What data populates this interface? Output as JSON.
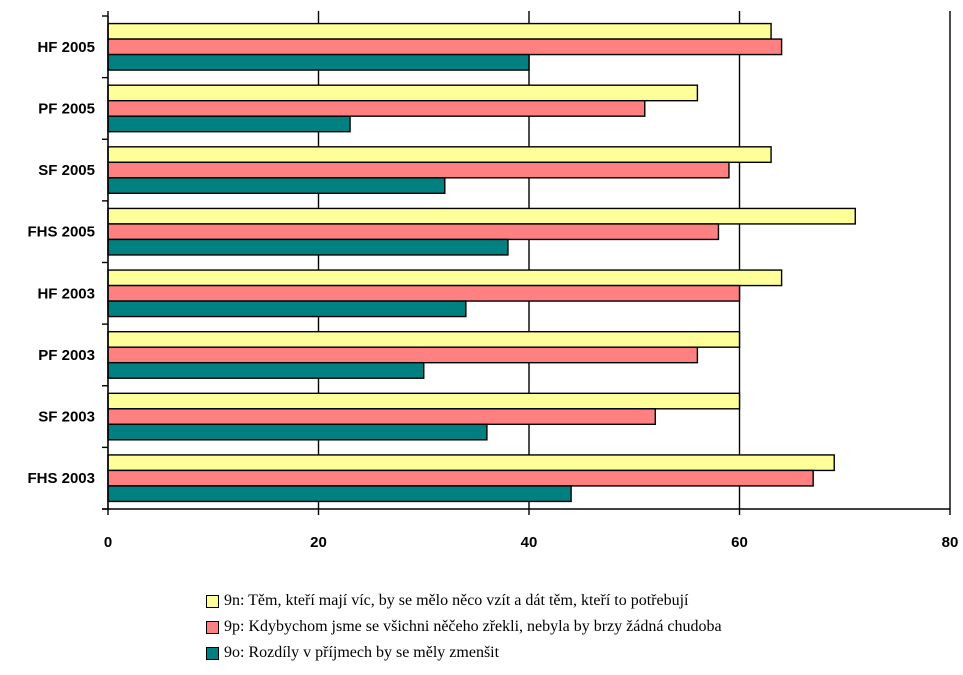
{
  "chart_data": {
    "type": "bar",
    "orientation": "horizontal",
    "categories": [
      "HF 2005",
      "PF 2005",
      "SF 2005",
      "FHS 2005",
      "HF 2003",
      "PF 2003",
      "SF 2003",
      "FHS 2003"
    ],
    "series": [
      {
        "name": "9n: Těm, kteří mají víc, by se mělo něco vzít a dát těm, kteří to potřebují",
        "color": "#FFFF99",
        "values": [
          63,
          56,
          63,
          71,
          64,
          60,
          60,
          69
        ]
      },
      {
        "name": "9p: Kdybychom jsme se všichni něčeho zřekli, nebyla by brzy žádná chudoba",
        "color": "#FF8080",
        "values": [
          64,
          51,
          59,
          58,
          60,
          56,
          52,
          67
        ]
      },
      {
        "name": "9o: Rozdíly v příjmech by se měly zmenšit",
        "color": "#008080",
        "values": [
          40,
          23,
          32,
          38,
          34,
          30,
          36,
          44
        ]
      }
    ],
    "xlim": [
      0,
      80
    ],
    "xticks": [
      "0",
      "20",
      "40",
      "60",
      "80"
    ],
    "xlabel": "",
    "ylabel": "",
    "title": "",
    "grid": "vertical major gridlines",
    "legend_position": "bottom"
  }
}
